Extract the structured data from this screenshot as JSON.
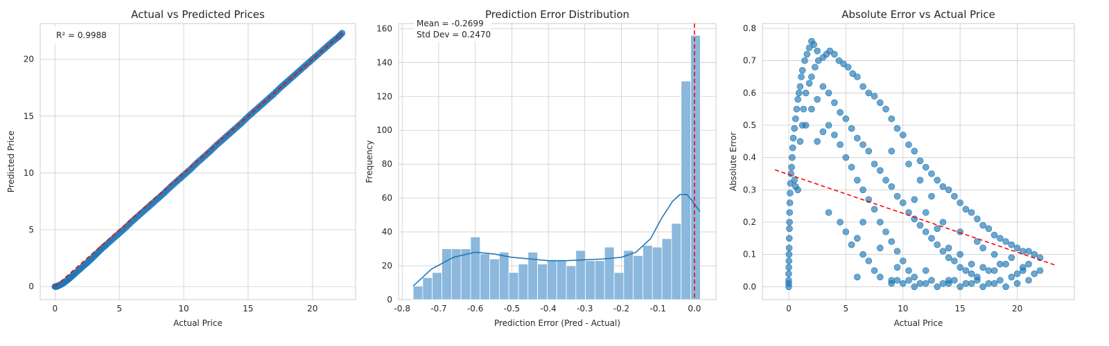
{
  "chart_data": [
    {
      "type": "scatter",
      "title": "Actual vs Predicted Prices",
      "xlabel": "Actual Price",
      "ylabel": "Predicted Price",
      "xlim": [
        -1.15,
        23.35
      ],
      "ylim": [
        -1.15,
        23.15
      ],
      "xticks": [
        0,
        5,
        10,
        15,
        20
      ],
      "yticks": [
        0,
        5,
        10,
        15,
        20
      ],
      "grid": true,
      "annotation": "R² = 0.9988",
      "series": [
        {
          "style": "points",
          "color": "#1f77b4",
          "x": [
            0.0,
            0.1,
            0.2,
            0.3,
            0.5,
            0.7,
            1.0,
            1.3,
            1.6,
            2.0,
            2.4,
            2.8,
            3.2,
            3.6,
            4.0,
            4.5,
            5.0,
            5.5,
            6.0,
            6.5,
            7.0,
            7.5,
            8.0,
            8.5,
            9.0,
            9.5,
            10.0,
            10.5,
            11.0,
            11.5,
            12.0,
            12.5,
            13.0,
            13.5,
            14.0,
            14.5,
            15.0,
            15.5,
            16.0,
            16.5,
            17.0,
            17.5,
            18.0,
            18.5,
            19.0,
            19.5,
            20.0,
            20.5,
            21.0,
            21.5,
            22.0,
            22.3
          ],
          "y": [
            0.0,
            0.0,
            0.05,
            0.1,
            0.2,
            0.35,
            0.6,
            0.9,
            1.2,
            1.6,
            2.0,
            2.4,
            2.85,
            3.3,
            3.7,
            4.2,
            4.7,
            5.2,
            5.75,
            6.25,
            6.75,
            7.25,
            7.75,
            8.25,
            8.8,
            9.3,
            9.8,
            10.3,
            10.85,
            11.35,
            11.85,
            12.4,
            12.9,
            13.4,
            13.9,
            14.4,
            14.95,
            15.45,
            15.95,
            16.45,
            16.95,
            17.5,
            18.0,
            18.5,
            19.0,
            19.5,
            20.0,
            20.5,
            21.0,
            21.5,
            21.95,
            22.3
          ]
        },
        {
          "style": "dashed-line",
          "color": "#ff0000",
          "x": [
            0,
            22.3
          ],
          "y": [
            0,
            22.3
          ]
        }
      ]
    },
    {
      "type": "bar",
      "title": "Prediction Error Distribution",
      "xlabel": "Prediction Error (Pred - Actual)",
      "ylabel": "Frequency",
      "xlim": [
        -0.81,
        0.059
      ],
      "ylim": [
        0,
        163
      ],
      "xticks": [
        -0.8,
        -0.7,
        -0.6,
        -0.5,
        -0.4,
        -0.3,
        -0.2,
        -0.1,
        0.0
      ],
      "xticklabels": [
        "-0.8",
        "-0.7",
        "-0.6",
        "-0.5",
        "-0.4",
        "-0.3",
        "-0.2",
        "-0.1",
        "0.0"
      ],
      "yticks": [
        0,
        20,
        40,
        60,
        80,
        100,
        120,
        140,
        160
      ],
      "grid": true,
      "annotation_lines": [
        "Mean = -0.2699",
        "Std Dev = 0.2470"
      ],
      "bins": {
        "start": -0.77,
        "width": 0.0262,
        "values": [
          8,
          13,
          16,
          30,
          30,
          30,
          37,
          27,
          24,
          28,
          16,
          21,
          28,
          21,
          23,
          23,
          20,
          29,
          23,
          23,
          31,
          16,
          29,
          26,
          32,
          31,
          36,
          45,
          129,
          156
        ]
      },
      "bar_color": "#8bb8dc",
      "kde": {
        "color": "#1f77b4",
        "x": [
          -0.77,
          -0.72,
          -0.66,
          -0.6,
          -0.55,
          -0.5,
          -0.45,
          -0.4,
          -0.35,
          -0.3,
          -0.25,
          -0.2,
          -0.16,
          -0.12,
          -0.09,
          -0.06,
          -0.04,
          -0.02,
          -0.005,
          0.015
        ],
        "y": [
          8,
          18,
          25,
          28,
          27,
          25,
          24,
          23,
          23,
          23.5,
          24,
          25,
          28,
          36,
          48,
          58,
          62,
          62,
          58,
          52
        ]
      },
      "vline": {
        "x": 0.0,
        "color": "#ff0000",
        "style": "dashed"
      }
    },
    {
      "type": "scatter",
      "title": "Absolute Error vs Actual Price",
      "xlabel": "Actual Price",
      "ylabel": "Absolute Error",
      "xlim": [
        -2.3,
        25.0
      ],
      "ylim": [
        -0.04,
        0.815
      ],
      "xticks": [
        0,
        5,
        10,
        15,
        20
      ],
      "yticks": [
        0.0,
        0.1,
        0.2,
        0.3,
        0.4,
        0.5,
        0.6,
        0.7,
        0.8
      ],
      "yticklabels": [
        "0.0",
        "0.1",
        "0.2",
        "0.3",
        "0.4",
        "0.5",
        "0.6",
        "0.7",
        "0.8"
      ],
      "grid": true,
      "points_color": "#1f77b4",
      "points": [
        [
          0,
          0.0
        ],
        [
          0,
          0.01
        ],
        [
          0,
          0.02
        ],
        [
          0,
          0.04
        ],
        [
          0.01,
          0.06
        ],
        [
          0.02,
          0.08
        ],
        [
          0.03,
          0.1
        ],
        [
          0.04,
          0.12
        ],
        [
          0.05,
          0.15
        ],
        [
          0.06,
          0.18
        ],
        [
          0.07,
          0.2
        ],
        [
          0.08,
          0.23
        ],
        [
          0.1,
          0.26
        ],
        [
          0.12,
          0.29
        ],
        [
          0.15,
          0.32
        ],
        [
          0.2,
          0.35
        ],
        [
          0.25,
          0.37
        ],
        [
          0.3,
          0.4
        ],
        [
          0.35,
          0.43
        ],
        [
          0.4,
          0.46
        ],
        [
          0.5,
          0.49
        ],
        [
          0.6,
          0.52
        ],
        [
          0.7,
          0.55
        ],
        [
          0.8,
          0.58
        ],
        [
          0.9,
          0.6
        ],
        [
          1.0,
          0.62
        ],
        [
          1.1,
          0.65
        ],
        [
          1.2,
          0.67
        ],
        [
          1.4,
          0.7
        ],
        [
          1.6,
          0.72
        ],
        [
          1.8,
          0.74
        ],
        [
          2.0,
          0.76
        ],
        [
          2.2,
          0.75
        ],
        [
          2.5,
          0.73
        ],
        [
          0.5,
          0.33
        ],
        [
          0.6,
          0.31
        ],
        [
          0.8,
          0.3
        ],
        [
          1.0,
          0.45
        ],
        [
          1.2,
          0.5
        ],
        [
          1.3,
          0.55
        ],
        [
          1.5,
          0.6
        ],
        [
          1.8,
          0.63
        ],
        [
          2.0,
          0.65
        ],
        [
          2.3,
          0.68
        ],
        [
          2.6,
          0.7
        ],
        [
          3.0,
          0.71
        ],
        [
          3.3,
          0.72
        ],
        [
          3.6,
          0.73
        ],
        [
          4.0,
          0.72
        ],
        [
          4.4,
          0.7
        ],
        [
          4.8,
          0.69
        ],
        [
          5.2,
          0.68
        ],
        [
          5.6,
          0.66
        ],
        [
          6.0,
          0.65
        ],
        [
          6.5,
          0.62
        ],
        [
          7.0,
          0.6
        ],
        [
          7.5,
          0.59
        ],
        [
          8.0,
          0.57
        ],
        [
          8.5,
          0.55
        ],
        [
          9.0,
          0.52
        ],
        [
          9.5,
          0.49
        ],
        [
          10.0,
          0.47
        ],
        [
          10.5,
          0.44
        ],
        [
          11.0,
          0.42
        ],
        [
          11.5,
          0.39
        ],
        [
          12.0,
          0.37
        ],
        [
          12.5,
          0.35
        ],
        [
          13.0,
          0.33
        ],
        [
          13.5,
          0.31
        ],
        [
          14.0,
          0.3
        ],
        [
          14.5,
          0.28
        ],
        [
          15.0,
          0.26
        ],
        [
          15.5,
          0.24
        ],
        [
          16.0,
          0.23
        ],
        [
          16.5,
          0.21
        ],
        [
          17.0,
          0.19
        ],
        [
          17.5,
          0.18
        ],
        [
          18.0,
          0.16
        ],
        [
          18.5,
          0.15
        ],
        [
          19.0,
          0.14
        ],
        [
          19.5,
          0.13
        ],
        [
          20.0,
          0.12
        ],
        [
          20.5,
          0.11
        ],
        [
          21.0,
          0.11
        ],
        [
          21.5,
          0.1
        ],
        [
          22.0,
          0.09
        ],
        [
          1.5,
          0.5
        ],
        [
          2.0,
          0.55
        ],
        [
          2.5,
          0.58
        ],
        [
          3.0,
          0.62
        ],
        [
          3.5,
          0.6
        ],
        [
          4.0,
          0.57
        ],
        [
          4.5,
          0.54
        ],
        [
          5.0,
          0.52
        ],
        [
          5.5,
          0.49
        ],
        [
          6.0,
          0.46
        ],
        [
          6.5,
          0.44
        ],
        [
          7.0,
          0.42
        ],
        [
          7.5,
          0.38
        ],
        [
          8.0,
          0.36
        ],
        [
          8.5,
          0.33
        ],
        [
          9.0,
          0.31
        ],
        [
          9.5,
          0.28
        ],
        [
          10.0,
          0.26
        ],
        [
          10.5,
          0.23
        ],
        [
          11.0,
          0.21
        ],
        [
          11.5,
          0.19
        ],
        [
          12.0,
          0.17
        ],
        [
          12.5,
          0.15
        ],
        [
          13.0,
          0.13
        ],
        [
          13.5,
          0.11
        ],
        [
          14.0,
          0.09
        ],
        [
          14.5,
          0.08
        ],
        [
          15.0,
          0.06
        ],
        [
          15.5,
          0.05
        ],
        [
          16.0,
          0.04
        ],
        [
          16.5,
          0.03
        ],
        [
          2.5,
          0.45
        ],
        [
          3.0,
          0.48
        ],
        [
          3.5,
          0.5
        ],
        [
          4.0,
          0.47
        ],
        [
          4.5,
          0.44
        ],
        [
          5.0,
          0.4
        ],
        [
          5.5,
          0.37
        ],
        [
          6.0,
          0.33
        ],
        [
          6.5,
          0.3
        ],
        [
          7.0,
          0.27
        ],
        [
          7.5,
          0.24
        ],
        [
          8.0,
          0.2
        ],
        [
          8.5,
          0.17
        ],
        [
          9.0,
          0.14
        ],
        [
          9.5,
          0.11
        ],
        [
          10.0,
          0.08
        ],
        [
          10.5,
          0.05
        ],
        [
          11.0,
          0.03
        ],
        [
          3.5,
          0.23
        ],
        [
          4.5,
          0.2
        ],
        [
          5.0,
          0.17
        ],
        [
          6.0,
          0.15
        ],
        [
          6.5,
          0.1
        ],
        [
          7.0,
          0.08
        ],
        [
          7.5,
          0.05
        ],
        [
          8.0,
          0.03
        ],
        [
          9.0,
          0.02
        ],
        [
          6.0,
          0.03
        ],
        [
          5.5,
          0.13
        ],
        [
          6.5,
          0.2
        ],
        [
          8.0,
          0.12
        ],
        [
          9.5,
          0.06
        ],
        [
          12.0,
          0.05
        ],
        [
          14.0,
          0.02
        ],
        [
          9.0,
          0.01
        ],
        [
          10.0,
          0.01
        ],
        [
          11.0,
          0.0
        ],
        [
          12.0,
          0.01
        ],
        [
          13.0,
          0.0
        ],
        [
          14.0,
          0.01
        ],
        [
          15.0,
          0.0
        ],
        [
          16.0,
          0.01
        ],
        [
          17.0,
          0.0
        ],
        [
          18.0,
          0.01
        ],
        [
          19.0,
          0.0
        ],
        [
          20.0,
          0.01
        ],
        [
          21.0,
          0.02
        ],
        [
          21.5,
          0.04
        ],
        [
          22.0,
          0.05
        ],
        [
          9.5,
          0.02
        ],
        [
          10.5,
          0.02
        ],
        [
          11.5,
          0.01
        ],
        [
          12.5,
          0.02
        ],
        [
          13.5,
          0.01
        ],
        [
          14.5,
          0.02
        ],
        [
          15.5,
          0.01
        ],
        [
          16.5,
          0.02
        ],
        [
          17.5,
          0.01
        ],
        [
          18.5,
          0.02
        ],
        [
          19.5,
          0.03
        ],
        [
          20.5,
          0.05
        ],
        [
          21.0,
          0.07
        ],
        [
          11.0,
          0.27
        ],
        [
          12.0,
          0.23
        ],
        [
          13.0,
          0.18
        ],
        [
          14.0,
          0.12
        ],
        [
          15.0,
          0.1
        ],
        [
          16.0,
          0.07
        ],
        [
          17.0,
          0.06
        ],
        [
          18.0,
          0.05
        ],
        [
          19.0,
          0.07
        ],
        [
          20.0,
          0.04
        ],
        [
          16.5,
          0.14
        ],
        [
          17.0,
          0.12
        ],
        [
          18.0,
          0.1
        ],
        [
          18.5,
          0.07
        ],
        [
          19.5,
          0.09
        ],
        [
          20.5,
          0.06
        ],
        [
          17.5,
          0.05
        ],
        [
          15.0,
          0.17
        ],
        [
          13.5,
          0.2
        ],
        [
          12.5,
          0.28
        ],
        [
          11.5,
          0.33
        ],
        [
          10.5,
          0.38
        ],
        [
          9.0,
          0.42
        ]
      ],
      "trend": {
        "color": "#ff0000",
        "style": "dashed",
        "x": [
          -1.2,
          23.4
        ],
        "y": [
          0.362,
          0.066
        ]
      }
    }
  ]
}
